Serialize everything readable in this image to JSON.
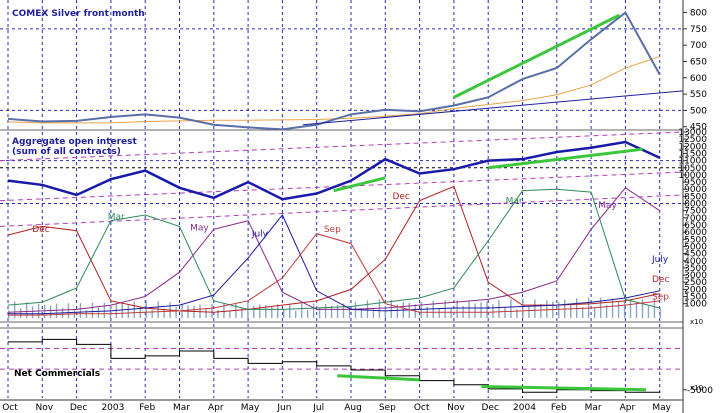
{
  "chart_data": [
    {
      "type": "line",
      "title": "COMEX Silver front month",
      "ylim": [
        440,
        820
      ],
      "y_ticks": [
        450,
        500,
        550,
        600,
        650,
        700,
        750,
        800
      ],
      "x": [
        "Oct",
        "Nov",
        "Dec",
        "2003",
        "Feb",
        "Mar",
        "Apr",
        "May",
        "Jun",
        "Jul",
        "Aug",
        "Sep",
        "Oct",
        "Nov",
        "Dec",
        "2004",
        "Feb",
        "Mar",
        "Apr",
        "May"
      ],
      "series": [
        {
          "values": [
            474,
            466,
            468,
            480,
            488,
            478,
            456,
            448,
            442,
            456,
            488,
            502,
            497,
            515,
            540,
            596,
            630,
            718,
            800,
            610
          ]
        },
        {
          "values": [
            465,
            462,
            462,
            462,
            466,
            468,
            470,
            470,
            471,
            472,
            476,
            482,
            490,
            506,
            518,
            530,
            548,
            578,
            630,
            665
          ]
        }
      ],
      "annotations": {
        "trend_up_recent": [
          540,
          792
        ],
        "trend_support": [
          456,
          560
        ]
      }
    },
    {
      "type": "line",
      "title": "Aggregate open interest (sum of all contracts)",
      "ylim": [
        0,
        13000
      ],
      "y_ticks": [
        1000,
        1500,
        2000,
        2500,
        3000,
        3500,
        4000,
        4500,
        5000,
        5500,
        6000,
        6500,
        7000,
        7500,
        8000,
        8500,
        9000,
        9500,
        10000,
        10500,
        11000,
        11500,
        12000,
        12500,
        13000
      ],
      "x": [
        "Oct",
        "Nov",
        "Dec",
        "2003",
        "Feb",
        "Mar",
        "Apr",
        "May",
        "Jun",
        "Jul",
        "Aug",
        "Sep",
        "Oct",
        "Nov",
        "Dec",
        "2004",
        "Feb",
        "Mar",
        "Apr",
        "May"
      ],
      "series": [
        {
          "name": "Aggregate",
          "values": [
            9600,
            9300,
            8600,
            9700,
            10300,
            9100,
            8400,
            9500,
            8300,
            8700,
            9600,
            11100,
            10100,
            10400,
            11000,
            11100,
            11600,
            11900,
            12300,
            11200
          ]
        },
        {
          "name": "Dec",
          "values": [
            5800,
            6400,
            6100,
            1200,
            700,
            500,
            400,
            600,
            900,
            1200,
            2000,
            4100,
            8200,
            9200,
            2500,
            900,
            900,
            1000,
            1200,
            1700
          ]
        },
        {
          "name": "Mar",
          "values": [
            900,
            1100,
            2100,
            6800,
            7200,
            6400,
            1200,
            600,
            600,
            700,
            800,
            1100,
            1400,
            2100,
            5400,
            8900,
            9000,
            8800,
            1300,
            700
          ]
        },
        {
          "name": "May",
          "values": [
            400,
            500,
            600,
            900,
            1500,
            3200,
            6200,
            6800,
            1800,
            600,
            600,
            700,
            900,
            1100,
            1300,
            1800,
            2600,
            6200,
            9100,
            7500
          ]
        },
        {
          "name": "July",
          "values": [
            300,
            300,
            400,
            500,
            700,
            900,
            1600,
            4200,
            7200,
            1900,
            600,
            500,
            600,
            700,
            700,
            800,
            900,
            1100,
            1400,
            1900
          ]
        },
        {
          "name": "Sep",
          "values": [
            200,
            200,
            300,
            300,
            400,
            500,
            700,
            1200,
            2800,
            5900,
            5200,
            1000,
            400,
            400,
            400,
            500,
            600,
            700,
            900,
            1200
          ]
        }
      ]
    },
    {
      "type": "line",
      "title": "Net Commercials",
      "ylim": [
        -6000,
        2000
      ],
      "y_ticks": [
        -5000
      ],
      "x": [
        "Oct",
        "Nov",
        "Dec",
        "2003",
        "Feb",
        "Mar",
        "Apr",
        "May",
        "Jun",
        "Jul",
        "Aug",
        "Sep",
        "Oct",
        "Nov",
        "Dec",
        "2004",
        "Feb",
        "Mar",
        "Apr",
        "May"
      ],
      "series": [
        {
          "values": [
            800,
            1100,
            500,
            -1200,
            -900,
            -300,
            -1200,
            -1800,
            -1600,
            -2100,
            -2600,
            -3300,
            -3900,
            -4400,
            -4900,
            -5300,
            -5000,
            -5100,
            -5300,
            -5200
          ]
        }
      ]
    }
  ],
  "labels": {
    "silver_title": "COMEX Silver front month",
    "oi_title_1": "Aggregate open interest",
    "oi_title_2": "(sum of all contracts)",
    "net_title": "Net Commercials",
    "k10_a": "x10",
    "k10_b": "x10",
    "contract_labels": [
      "Dec",
      "Mar",
      "May",
      "July",
      "Sep",
      "Dec",
      "Mar",
      "May"
    ],
    "right_contract_labels": [
      "July",
      "Dec",
      "Sep"
    ]
  },
  "colors": {
    "silver": "#5a6fa8",
    "ma": "#e8a34a",
    "trend_green": "#3cc63c",
    "trend_blue": "#1f1f9a",
    "aggregate": "#1a1aaa",
    "dec": "#b41e1e",
    "mar": "#2f8a5a",
    "may": "#8a2a8a",
    "july": "#1a1a9a",
    "sep": "#c23a3a",
    "channel": "#b43cb4",
    "grid_blue": "#2a2ab8",
    "bars": "#8aa6c4",
    "net": "#000000"
  }
}
